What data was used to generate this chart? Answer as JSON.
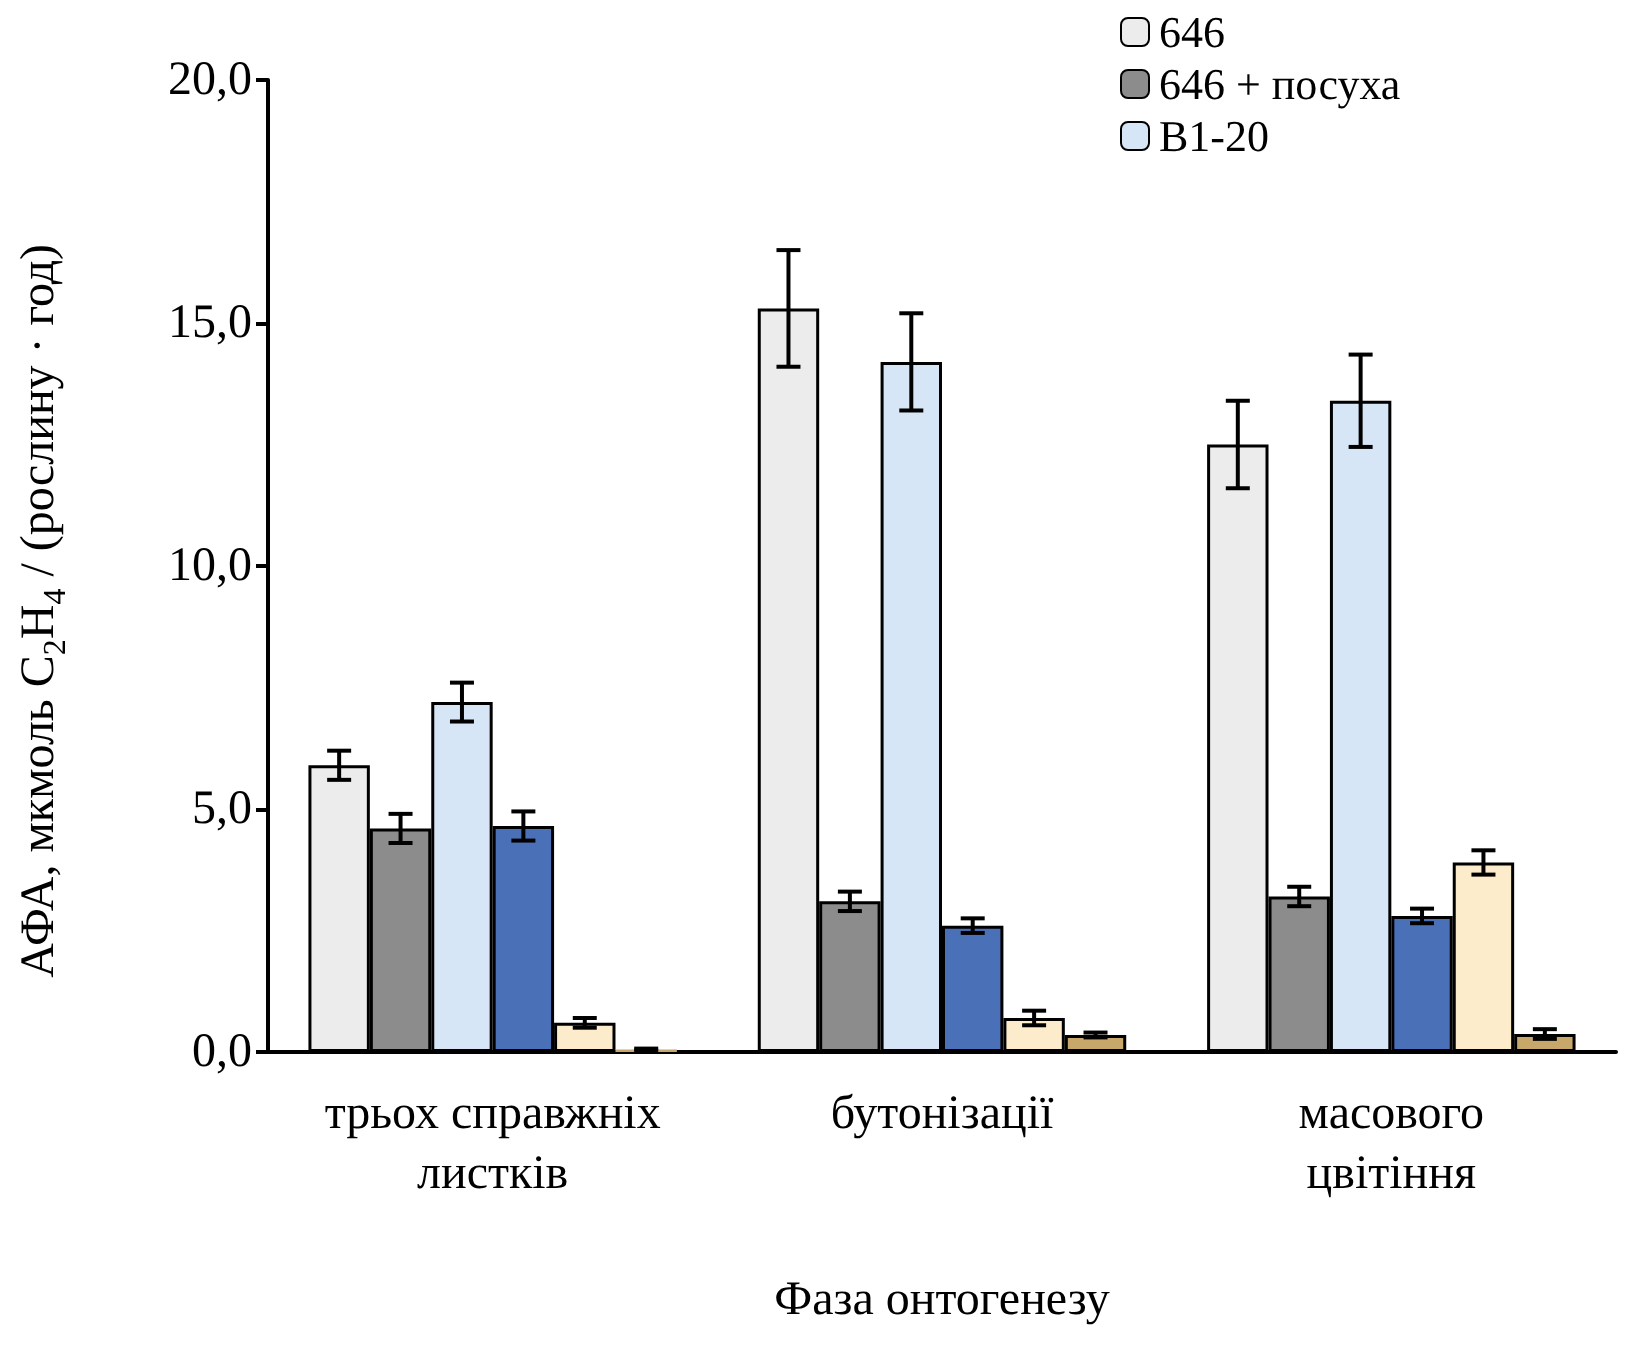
{
  "chart_data": {
    "type": "bar",
    "xlabel": "Фаза онтогенезу",
    "ylabel": "АФА, мкмоль C$_{2}$H$_{4}$ / (рослину · год)",
    "categories": [
      "трьох справжніх\nлистків",
      "бутонізації",
      "масового\nцвітіння"
    ],
    "series": [
      {
        "name": "646",
        "color": "#ececec",
        "values": [
          5.9,
          15.3,
          12.5
        ],
        "errors": [
          0.3,
          1.2,
          0.9
        ]
      },
      {
        "name": "646 + посуха",
        "color": "#8c8c8c",
        "values": [
          4.6,
          3.1,
          3.2
        ],
        "errors": [
          0.3,
          0.2,
          0.2
        ]
      },
      {
        "name": "В1-20",
        "color": "#d6e6f7",
        "values": [
          7.2,
          14.2,
          13.4
        ],
        "errors": [
          0.4,
          1.0,
          0.95
        ]
      },
      {
        "color": "#4a70b8",
        "values": [
          4.65,
          2.6,
          2.8
        ],
        "errors": [
          0.3,
          0.15,
          0.15
        ]
      },
      {
        "color": "#fdeccc",
        "values": [
          0.6,
          0.7,
          3.9
        ],
        "errors": [
          0.1,
          0.15,
          0.25
        ]
      },
      {
        "color": "#c8a86a",
        "values": [
          0.05,
          0.35,
          0.37
        ],
        "errors": [
          0.02,
          0.05,
          0.1
        ]
      }
    ],
    "ylim": [
      0,
      20
    ],
    "yticks": [
      {
        "value": 0,
        "label": "0,0"
      },
      {
        "value": 5,
        "label": "5,0"
      },
      {
        "value": 10,
        "label": "10,0"
      },
      {
        "value": 15,
        "label": "15,0"
      },
      {
        "value": 20,
        "label": "20,0"
      }
    ],
    "grid": false,
    "legend": "top right"
  }
}
